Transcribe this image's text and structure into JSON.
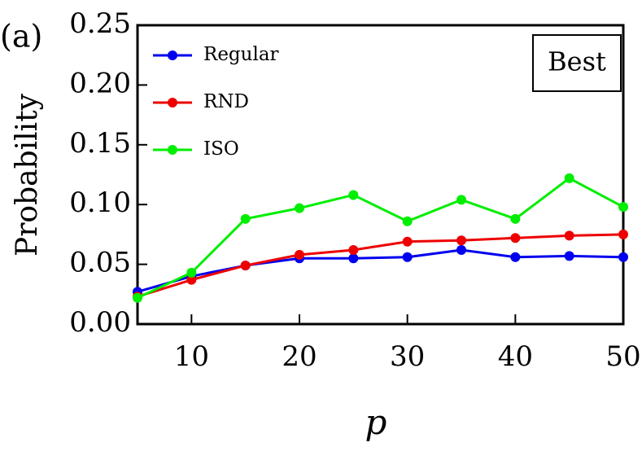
{
  "chart_data": {
    "type": "line",
    "panel_label": "(a)",
    "box_label": "Best",
    "x_label": "p",
    "y_label": "Probability",
    "x": [
      5,
      10,
      15,
      20,
      25,
      30,
      35,
      40,
      45,
      50
    ],
    "series": [
      {
        "name": "Regular",
        "color": "#0000ee",
        "values": [
          0.027,
          0.04,
          0.049,
          0.055,
          0.055,
          0.056,
          0.062,
          0.056,
          0.057,
          0.056
        ]
      },
      {
        "name": "RND",
        "color": "#ee0000",
        "values": [
          0.023,
          0.037,
          0.049,
          0.058,
          0.062,
          0.069,
          0.07,
          0.072,
          0.074,
          0.075
        ]
      },
      {
        "name": "ISO",
        "color": "#00ee00",
        "values": [
          0.022,
          0.043,
          0.088,
          0.097,
          0.108,
          0.086,
          0.104,
          0.088,
          0.122,
          0.098
        ]
      }
    ],
    "xlim": [
      5,
      50
    ],
    "ylim": [
      0,
      0.25
    ],
    "xticks": [
      10,
      20,
      30,
      40,
      50
    ],
    "yticks": [
      {
        "value": 0,
        "label": "0.00"
      },
      {
        "value": 0.05,
        "label": "0.05"
      },
      {
        "value": 0.1,
        "label": "0.10"
      },
      {
        "value": 0.15,
        "label": "0.15"
      },
      {
        "value": 0.2,
        "label": "0.20"
      },
      {
        "value": 0.25,
        "label": "0.25"
      }
    ],
    "legend": "upper left"
  }
}
